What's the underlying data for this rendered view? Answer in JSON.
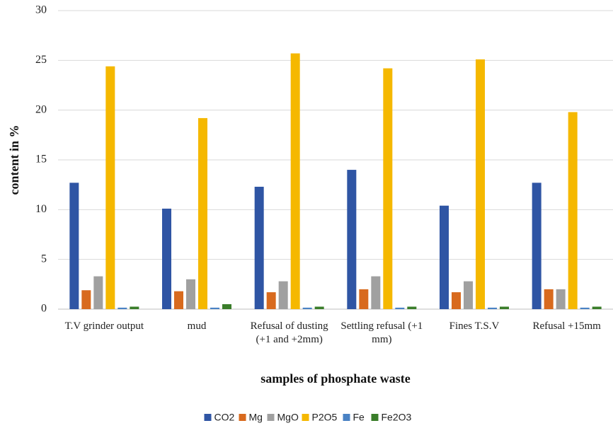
{
  "chart_data": {
    "type": "bar",
    "x_label": "samples of phosphate waste",
    "y_label": "content in %",
    "categories": [
      "T.V grinder output",
      "mud",
      "Refusal of dusting (+1 and +2mm)",
      "Settling refusal (+1 mm)",
      "Fines T.S.V",
      "Refusal +15mm"
    ],
    "series": [
      {
        "name": "CO2",
        "color": "#2f55a4",
        "values": [
          12.7,
          10.1,
          12.3,
          14.0,
          10.4,
          12.7
        ]
      },
      {
        "name": "Mg",
        "color": "#d86a1e",
        "values": [
          1.9,
          1.8,
          1.7,
          2.0,
          1.7,
          2.0
        ]
      },
      {
        "name": "MgO",
        "color": "#a0a0a0",
        "values": [
          3.3,
          3.0,
          2.8,
          3.3,
          2.8,
          2.0
        ]
      },
      {
        "name": "P2O5",
        "color": "#f5b800",
        "values": [
          24.4,
          19.2,
          25.7,
          24.2,
          25.1,
          19.8
        ]
      },
      {
        "name": "Fe",
        "color": "#4a82c4",
        "values": [
          0.15,
          0.15,
          0.15,
          0.15,
          0.15,
          0.15
        ]
      },
      {
        "name": "Fe2O3",
        "color": "#3a7d2a",
        "values": [
          0.25,
          0.5,
          0.25,
          0.25,
          0.25,
          0.25
        ]
      }
    ],
    "ylim": [
      0,
      30
    ],
    "yticks": [
      0,
      5,
      10,
      15,
      20,
      25,
      30
    ],
    "grid": true,
    "legend": "bottom"
  }
}
